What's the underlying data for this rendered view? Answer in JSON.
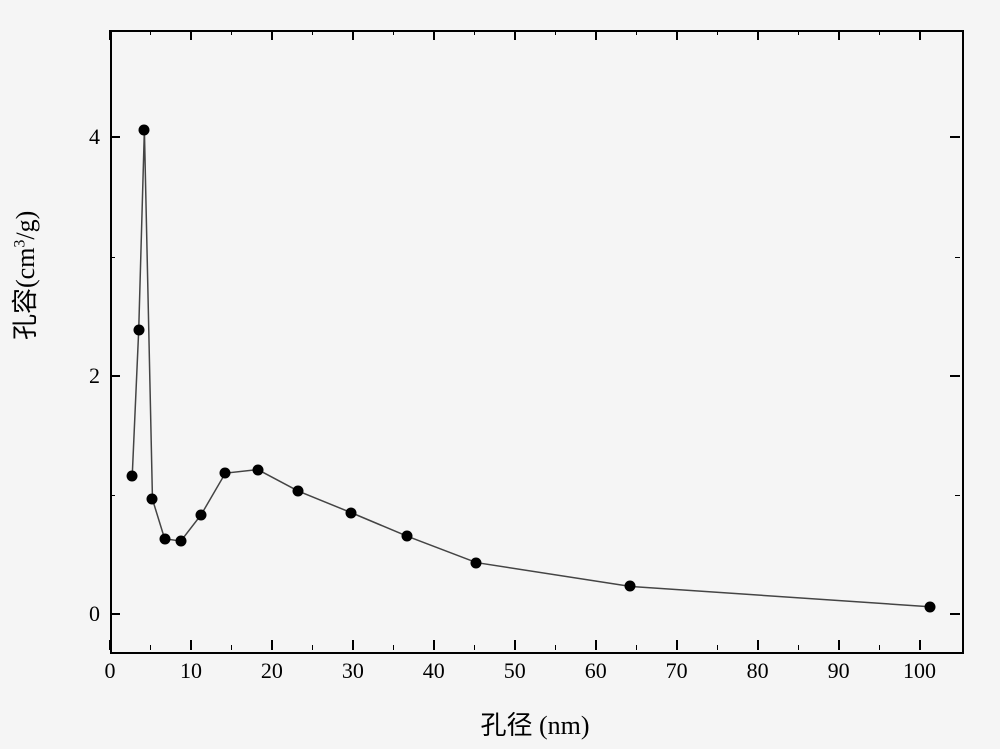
{
  "chart": {
    "type": "line",
    "xlabel": "孔径 (nm)",
    "ylabel_prefix": "孔容(cm",
    "ylabel_sup": "3",
    "ylabel_suffix": "/g)",
    "xlim": [
      0,
      105
    ],
    "ylim": [
      -0.3,
      4.9
    ],
    "xtick_major": [
      0,
      10,
      20,
      30,
      40,
      50,
      60,
      70,
      80,
      90,
      100
    ],
    "xtick_minor": [
      5,
      15,
      25,
      35,
      45,
      55,
      65,
      75,
      85,
      95
    ],
    "ytick_major": [
      0,
      2,
      4
    ],
    "ytick_minor": [
      1,
      3
    ],
    "xtick_labels": [
      "0",
      "10",
      "20",
      "30",
      "40",
      "50",
      "60",
      "70",
      "80",
      "90",
      "100"
    ],
    "ytick_labels": [
      "0",
      "2",
      "4"
    ],
    "line_color": "#444444",
    "line_width": 1.5,
    "marker_color": "#000000",
    "marker_size": 11,
    "background_color": "#f5f5f5",
    "axis_color": "#000000",
    "label_fontsize": 26,
    "tick_fontsize": 22,
    "data": [
      {
        "x": 2.5,
        "y": 1.18
      },
      {
        "x": 3.3,
        "y": 2.4
      },
      {
        "x": 4.0,
        "y": 4.08
      },
      {
        "x": 5.0,
        "y": 0.98
      },
      {
        "x": 6.5,
        "y": 0.65
      },
      {
        "x": 8.5,
        "y": 0.63
      },
      {
        "x": 11.0,
        "y": 0.85
      },
      {
        "x": 14.0,
        "y": 1.2
      },
      {
        "x": 18.0,
        "y": 1.23
      },
      {
        "x": 23.0,
        "y": 1.05
      },
      {
        "x": 29.5,
        "y": 0.87
      },
      {
        "x": 36.5,
        "y": 0.67
      },
      {
        "x": 45.0,
        "y": 0.45
      },
      {
        "x": 64.0,
        "y": 0.25
      },
      {
        "x": 101.0,
        "y": 0.08
      }
    ]
  }
}
